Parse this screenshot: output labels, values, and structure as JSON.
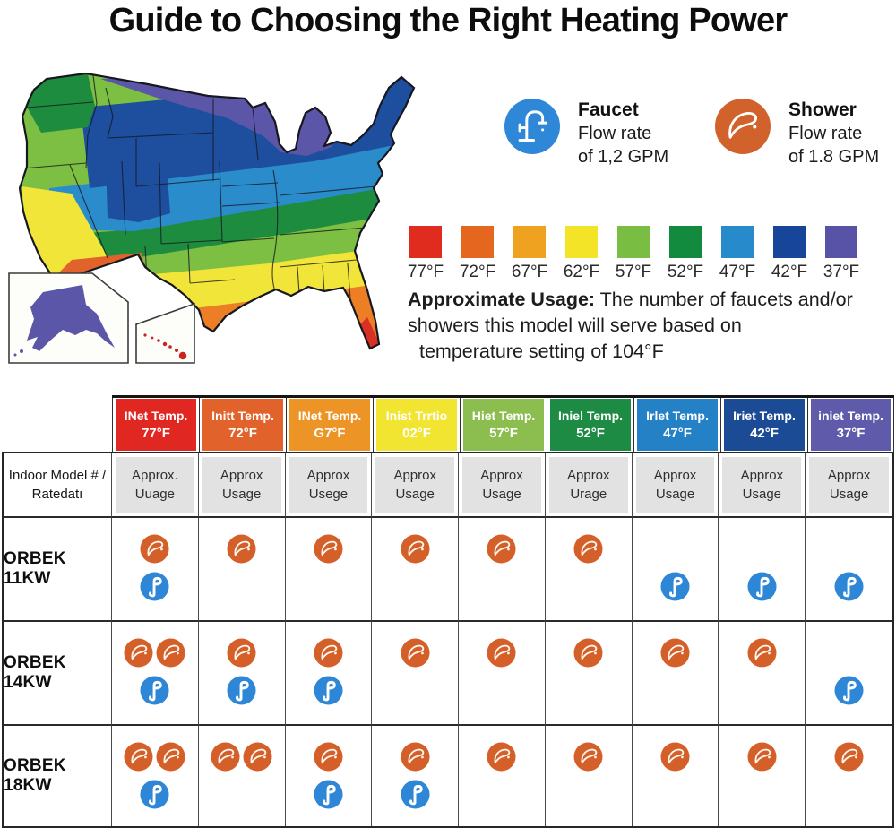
{
  "title": "Guide to Choosing the Right Heating Power",
  "flow_info": {
    "faucet": {
      "label": "Faucet",
      "line1": "Flow rate",
      "line2": "of 1,2 GPM",
      "color": "#2F87D8"
    },
    "shower": {
      "label": "Shower",
      "line1": "Flow rate",
      "line2": "of 1.8 GPM",
      "color": "#D2622B"
    }
  },
  "legend": {
    "items": [
      {
        "temp": "77°F",
        "color": "#E02B1F"
      },
      {
        "temp": "72°F",
        "color": "#E5671F"
      },
      {
        "temp": "67°F",
        "color": "#EFA21F"
      },
      {
        "temp": "62°F",
        "color": "#F4E428"
      },
      {
        "temp": "57°F",
        "color": "#79BD43"
      },
      {
        "temp": "52°F",
        "color": "#128B3F"
      },
      {
        "temp": "47°F",
        "color": "#268ACB"
      },
      {
        "temp": "42°F",
        "color": "#17459A"
      },
      {
        "temp": "37°F",
        "color": "#5853A6"
      }
    ]
  },
  "usage_note": {
    "label": "Approximate Usage:",
    "line1": " The number of faucets and/or",
    "line2": "showers this model will serve based on",
    "line3": "temperature setting of 104°F"
  },
  "map_colors": {
    "purple": "#5B56A8",
    "navy": "#1D4F9E",
    "blue": "#2B8CCB",
    "dark_green": "#1E8C3F",
    "light_green": "#7CBF42",
    "yellow": "#F2E539",
    "orange": "#EC7F26",
    "deep_orange": "#E2622B",
    "red": "#D93025"
  },
  "icon_colors": {
    "shower_circle": "#D45F28",
    "faucet_circle": "#2E86D6"
  },
  "table": {
    "corner": {
      "line1": "Indoor Model # /",
      "line2": "Ratedatı"
    },
    "columns": [
      {
        "header_line1": "INet Temp.",
        "header_line2": "77°F",
        "color": "#E02722",
        "usage_line1": "Approx.",
        "usage_line2": "Uuage"
      },
      {
        "header_line1": "Initt Temp.",
        "header_line2": "72°F",
        "color": "#E2622B",
        "usage_line1": "Approx",
        "usage_line2": "Usage"
      },
      {
        "header_line1": "INet Temp.",
        "header_line2": "G7°F",
        "color": "#EC9426",
        "usage_line1": "Approx",
        "usage_line2": "Usege"
      },
      {
        "header_line1": "Inist Trrtio",
        "header_line2": "02°F",
        "color": "#F2E531",
        "usage_line1": "Approx",
        "usage_line2": "Usage"
      },
      {
        "header_line1": "Hiet Temp.",
        "header_line2": "57°F",
        "color": "#8BBE4E",
        "usage_line1": "Approx",
        "usage_line2": "Usage"
      },
      {
        "header_line1": "Iniel Temp.",
        "header_line2": "52°F",
        "color": "#1E8B44",
        "usage_line1": "Approx",
        "usage_line2": "Urage"
      },
      {
        "header_line1": "Irlet Temp.",
        "header_line2": "47°F",
        "color": "#2581C6",
        "usage_line1": "Approx",
        "usage_line2": "Usage"
      },
      {
        "header_line1": "Iriet Temp.",
        "header_line2": "42°F",
        "color": "#1C4B96",
        "usage_line1": "Approx",
        "usage_line2": "Usage"
      },
      {
        "header_line1": "iniet Temp.",
        "header_line2": "37°F",
        "color": "#5F5AA9",
        "usage_line1": "Approx",
        "usage_line2": "Usage"
      }
    ],
    "rows": [
      {
        "model": "ORBEK 11KW",
        "cells": [
          {
            "showers": 1,
            "faucets": 1
          },
          {
            "showers": 1,
            "faucets": 0
          },
          {
            "showers": 1,
            "faucets": 0
          },
          {
            "showers": 1,
            "faucets": 0
          },
          {
            "showers": 1,
            "faucets": 0
          },
          {
            "showers": 1,
            "faucets": 0
          },
          {
            "showers": 0,
            "faucets": 1
          },
          {
            "showers": 0,
            "faucets": 1
          },
          {
            "showers": 0,
            "faucets": 1
          }
        ]
      },
      {
        "model": "ORBEK 14KW",
        "cells": [
          {
            "showers": 2,
            "faucets": 1
          },
          {
            "showers": 1,
            "faucets": 1
          },
          {
            "showers": 1,
            "faucets": 1
          },
          {
            "showers": 1,
            "faucets": 0
          },
          {
            "showers": 1,
            "faucets": 0
          },
          {
            "showers": 1,
            "faucets": 0
          },
          {
            "showers": 1,
            "faucets": 0
          },
          {
            "showers": 1,
            "faucets": 0
          },
          {
            "showers": 0,
            "faucets": 1
          }
        ]
      },
      {
        "model": "ORBEK 18KW",
        "cells": [
          {
            "showers": 2,
            "faucets": 1
          },
          {
            "showers": 2,
            "faucets": 0
          },
          {
            "showers": 1,
            "faucets": 1
          },
          {
            "showers": 1,
            "faucets": 1
          },
          {
            "showers": 1,
            "faucets": 0
          },
          {
            "showers": 1,
            "faucets": 0
          },
          {
            "showers": 1,
            "faucets": 0
          },
          {
            "showers": 1,
            "faucets": 0
          },
          {
            "showers": 1,
            "faucets": 0
          }
        ]
      }
    ]
  }
}
